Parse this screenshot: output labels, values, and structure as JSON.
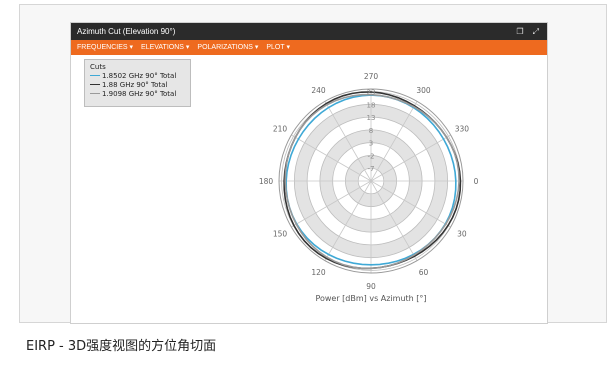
{
  "window": {
    "title": "Azimuth Cut (Elevation 90°)",
    "icons": [
      "restore-icon",
      "expand-icon"
    ]
  },
  "menu": {
    "frequencies": "FREQUENCIES ▾",
    "elevations": "ELEVATIONS ▾",
    "polarizations": "POLARIZATIONS ▾",
    "plot": "PLOT ▾"
  },
  "legend": {
    "title": "Cuts",
    "items": [
      {
        "label": "1.8502 GHz 90° Total",
        "color": "#3fa9d6"
      },
      {
        "label": "1.88 GHz 90° Total",
        "color": "#333333"
      },
      {
        "label": "1.9098 GHz 90° Total",
        "color": "#9a9a9a"
      }
    ]
  },
  "caption": "EIRP - 3D强度视图的方位角切面",
  "chart_data": {
    "type": "polar",
    "xlabel": "Power [dBm] vs Azimuth [°]",
    "angle_ticks": [
      0,
      30,
      60,
      90,
      120,
      150,
      180,
      210,
      240,
      270,
      300,
      330
    ],
    "radial_ticks": [
      -7,
      -2,
      3,
      8,
      13,
      18,
      23
    ],
    "rlim": [
      -12,
      24
    ],
    "series": [
      {
        "name": "1.8502 GHz 90° Total",
        "color": "#3fa9d6",
        "r_mean": 21.2,
        "r_var": 0.4
      },
      {
        "name": "1.88 GHz 90° Total",
        "color": "#333333",
        "r_mean": 22.5,
        "r_var": 0.6
      },
      {
        "name": "1.9098 GHz 90° Total",
        "color": "#9a9a9a",
        "r_mean": 22.0,
        "r_var": 0.5
      }
    ]
  }
}
